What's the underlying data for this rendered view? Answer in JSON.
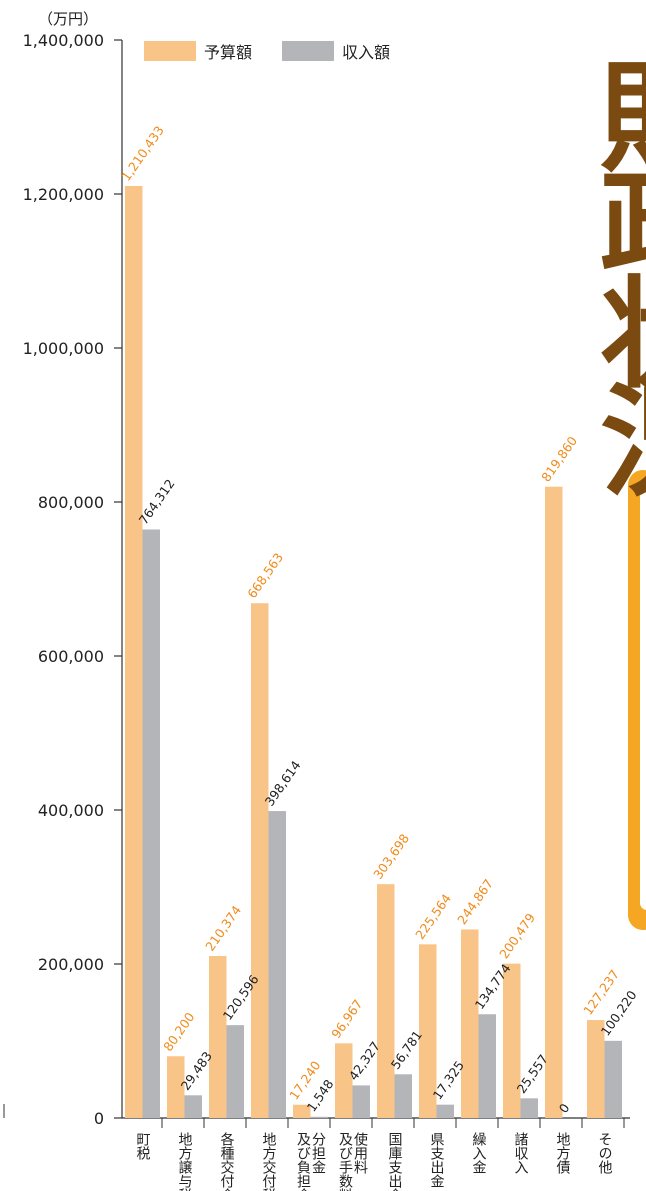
{
  "chart_data": {
    "type": "bar",
    "unit_label": "（万円）",
    "categories": [
      "町税",
      "地方譲与税",
      "各種交付金",
      "地方交付税",
      "分担金及び負担金",
      "使用料及び手数料",
      "国庫支出金",
      "県支出金",
      "繰入金",
      "諸収入",
      "地方債",
      "その他"
    ],
    "category_columns": [
      [
        "町税"
      ],
      [
        "地方譲与税"
      ],
      [
        "各種交付金"
      ],
      [
        "地方交付税"
      ],
      [
        "分担金",
        "及び負担金"
      ],
      [
        "使用料",
        "及び手数料"
      ],
      [
        "国庫支出金"
      ],
      [
        "県支出金"
      ],
      [
        "繰入金"
      ],
      [
        "諸収入"
      ],
      [
        "地方債"
      ],
      [
        "その他"
      ]
    ],
    "series": [
      {
        "name": "予算額",
        "color": "#f9c488",
        "label_color": "#f08c1e",
        "values": [
          1210433,
          80200,
          210374,
          668563,
          17240,
          96967,
          303698,
          225564,
          244867,
          200479,
          819860,
          127237
        ],
        "labels": [
          "1,210,433",
          "80,200",
          "210,374",
          "668,563",
          "17,240",
          "96,967",
          "303,698",
          "225,564",
          "244,867",
          "200,479",
          "819,860",
          "127,237"
        ]
      },
      {
        "name": "収入額",
        "color": "#b3b5b9",
        "label_color": "#222222",
        "values": [
          764312,
          29483,
          120596,
          398614,
          1548,
          42327,
          56781,
          17325,
          134774,
          25557,
          0,
          100220
        ],
        "labels": [
          "764,312",
          "29,483",
          "120,596",
          "398,614",
          "1,548",
          "42,327",
          "56,781",
          "17,325",
          "134,774",
          "25,557",
          "0",
          "100,220"
        ]
      }
    ],
    "yticks": [
      0,
      200000,
      400000,
      600000,
      800000,
      1000000,
      1200000,
      1400000
    ],
    "ytick_labels": [
      "0",
      "200,000",
      "400,000",
      "600,000",
      "800,000",
      "1,000,000",
      "1,200,000",
      "1,400,000"
    ],
    "ylim": [
      0,
      1400000
    ],
    "legend_position": "top",
    "grid": false
  },
  "decoration": {
    "side_title_chars": [
      "財",
      "政",
      "状",
      "況"
    ],
    "title_color": "#7a4a10",
    "accent_color": "#f5a623"
  }
}
